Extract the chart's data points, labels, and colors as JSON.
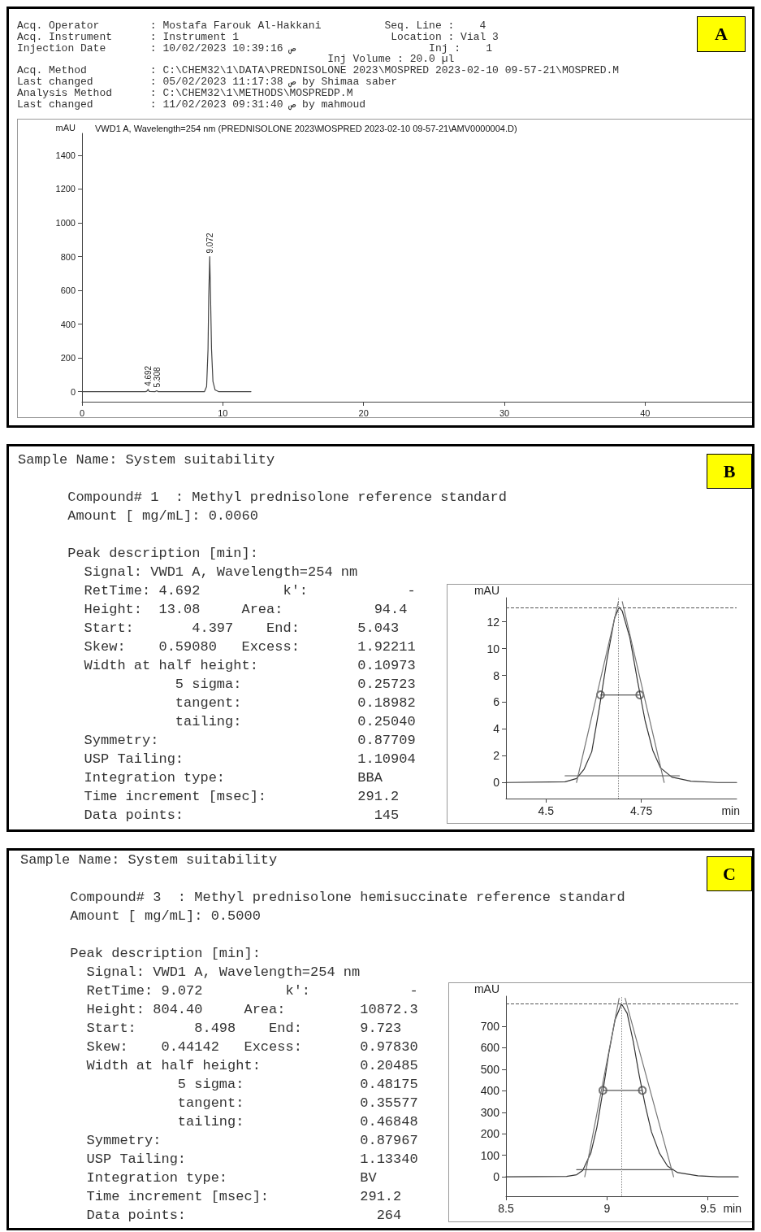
{
  "chart_data": [
    {
      "type": "other",
      "title": "A",
      "annotations": [
        "Acq. Operator        : Mostafa Farouk Al-Hakkani          Seq. Line :    4\nAcq. Instrument      : Instrument 1                        Location : Vial 3\nInjection Date       : 10/02/2023 10:39:16 ص                     Inj :    1\n                                                 Inj Volume : 20.0 µl\nAcq. Method          : C:\\CHEM32\\1\\DATA\\PREDNISOLONE 2023\\MOSPRED 2023-02-10 09-57-21\\MOSPRED.M\nLast changed         : 05/02/2023 11:17:38 ص by Shimaa saber\nAnalysis Method      : C:\\CHEM32\\1\\METHODS\\MOSPREDP.M\nLast changed         : 11/02/2023 09:31:40 ص by mahmoud"
      ]
    },
    {
      "type": "line",
      "title": "VWD1 A, Wavelength=254 nm (PREDNISOLONE 2023\\MOSPRED 2023-02-10 09-57-21\\AMV0000004.D)",
      "ylabel": "mAU",
      "xlim": [
        0,
        48
      ],
      "xticks": [
        0,
        10,
        20,
        30,
        40
      ],
      "ylim": [
        -60,
        1530
      ],
      "yticks": [
        0,
        200,
        400,
        600,
        800,
        1000,
        1200,
        1400
      ],
      "series": [
        {
          "color": "#444444",
          "x": [
            0,
            4.5,
            4.6,
            4.692,
            4.78,
            5.2,
            5.308,
            5.4,
            8.7,
            8.85,
            8.95,
            9.0,
            9.072,
            9.13,
            9.2,
            9.3,
            9.45,
            9.7,
            12
          ],
          "values": [
            0,
            0,
            2,
            13,
            1,
            0,
            5,
            0,
            0,
            30,
            250,
            560,
            800,
            560,
            250,
            60,
            10,
            0,
            0
          ]
        }
      ],
      "annotations": [
        {
          "text": "9.072",
          "x": 9.072,
          "y": 800
        },
        {
          "text": "4.692",
          "x": 4.692,
          "y": 13
        },
        {
          "text": "5.308",
          "x": 5.308,
          "y": 5
        }
      ]
    },
    {
      "type": "other",
      "title": "B",
      "annotations": [
        "Sample Name: System suitability",
        "      Compound# 1  : Methyl prednisolone reference standard\n      Amount [ mg/mL]: 0.0060",
        "      Peak description [min]:\n        Signal: VWD1 A, Wavelength=254 nm\n        RetTime: 4.692          k':            -\n        Height:  13.08     Area:           94.4\n        Start:       4.397    End:       5.043\n        Skew:    0.59080   Excess:       1.92211\n        Width at half height:            0.10973\n                   5 sigma:              0.25723\n                   tangent:              0.18982\n                   tailing:              0.25040\n        Symmetry:                        0.87709\n        USP Tailing:                     1.10904\n        Integration type:                BBA\n        Time increment [msec]:           291.2\n        Data points:                       145"
      ]
    },
    {
      "type": "line",
      "ylabel": "mAU",
      "xlabel": "min",
      "xlim": [
        4.395,
        5.0
      ],
      "xticks": [
        4.5,
        4.75
      ],
      "ylim": [
        -1.2,
        13.8
      ],
      "yticks": [
        0,
        2,
        4,
        6,
        8,
        10,
        12
      ],
      "ref_lines": [
        {
          "axis": "y",
          "value": 13.08,
          "line_style": "dashed",
          "color": "#555555"
        },
        {
          "axis": "x",
          "value": 4.692,
          "line_style": "dotted",
          "color": "#888888"
        }
      ],
      "series": [
        {
          "color": "#333333",
          "x": [
            4.395,
            4.55,
            4.58,
            4.6,
            4.62,
            4.64,
            4.66,
            4.68,
            4.692,
            4.7,
            4.72,
            4.74,
            4.76,
            4.78,
            4.8,
            4.83,
            4.88,
            4.95,
            5.0
          ],
          "values": [
            0,
            0.05,
            0.3,
            1,
            2.3,
            5.6,
            9.2,
            12.3,
            13.08,
            12.8,
            10.8,
            7.6,
            4.6,
            2.4,
            1.1,
            0.4,
            0.1,
            0,
            0
          ]
        },
        {
          "color": "#777777",
          "x": [
            4.58,
            4.69
          ],
          "values": [
            0,
            13.5
          ]
        },
        {
          "color": "#777777",
          "x": [
            4.7,
            4.81
          ],
          "values": [
            13.5,
            0
          ]
        },
        {
          "color": "#555555",
          "x": [
            4.643,
            4.746
          ],
          "values": [
            6.54,
            6.54
          ]
        },
        {
          "color": "#555555",
          "x": [
            4.55,
            4.85
          ],
          "values": [
            0.5,
            0.5
          ]
        },
        {
          "type": "scatter",
          "color": "#555555",
          "marker": "circle",
          "x": [
            4.643,
            4.746
          ],
          "values": [
            6.54,
            6.54
          ]
        }
      ]
    },
    {
      "type": "other",
      "title": "C",
      "annotations": [
        "Sample Name: System suitability",
        "      Compound# 3  : Methyl prednisolone hemisuccinate reference standard\n      Amount [ mg/mL]: 0.5000",
        "      Peak description [min]:\n        Signal: VWD1 A, Wavelength=254 nm\n        RetTime: 9.072          k':            -\n        Height: 804.40     Area:         10872.3\n        Start:       8.498    End:       9.723\n        Skew:    0.44142   Excess:       0.97830\n        Width at half height:            0.20485\n                   5 sigma:              0.48175\n                   tangent:              0.35577\n                   tailing:              0.46848\n        Symmetry:                        0.87967\n        USP Tailing:                     1.13340\n        Integration type:                BV\n        Time increment [msec]:           291.2\n        Data points:                       264"
      ]
    },
    {
      "type": "line",
      "ylabel": "mAU",
      "xlabel": "min",
      "xlim": [
        8.5,
        9.65
      ],
      "xticks": [
        8.5,
        9,
        9.5
      ],
      "ylim": [
        -90,
        840
      ],
      "yticks": [
        0,
        100,
        200,
        300,
        400,
        500,
        600,
        700
      ],
      "ref_lines": [
        {
          "axis": "y",
          "value": 804,
          "line_style": "dashed",
          "color": "#555555"
        },
        {
          "axis": "x",
          "value": 9.072,
          "line_style": "dotted",
          "color": "#888888"
        }
      ],
      "series": [
        {
          "color": "#333333",
          "x": [
            8.5,
            8.8,
            8.85,
            8.88,
            8.92,
            8.95,
            8.98,
            9.01,
            9.04,
            9.072,
            9.1,
            9.13,
            9.16,
            9.19,
            9.22,
            9.26,
            9.3,
            9.35,
            9.45,
            9.55,
            9.65
          ],
          "values": [
            0,
            2,
            10,
            30,
            110,
            230,
            400,
            580,
            730,
            804,
            760,
            630,
            470,
            330,
            210,
            110,
            50,
            20,
            5,
            0,
            0
          ]
        },
        {
          "color": "#777777",
          "x": [
            8.89,
            9.06
          ],
          "values": [
            0,
            830
          ]
        },
        {
          "color": "#777777",
          "x": [
            9.09,
            9.33
          ],
          "values": [
            830,
            0
          ]
        },
        {
          "color": "#555555",
          "x": [
            8.98,
            9.175
          ],
          "values": [
            402,
            402
          ]
        },
        {
          "color": "#555555",
          "x": [
            8.85,
            9.33
          ],
          "values": [
            33,
            33
          ]
        },
        {
          "type": "scatter",
          "color": "#555555",
          "marker": "circle",
          "x": [
            8.98,
            9.175
          ],
          "values": [
            402,
            402
          ]
        }
      ]
    }
  ]
}
